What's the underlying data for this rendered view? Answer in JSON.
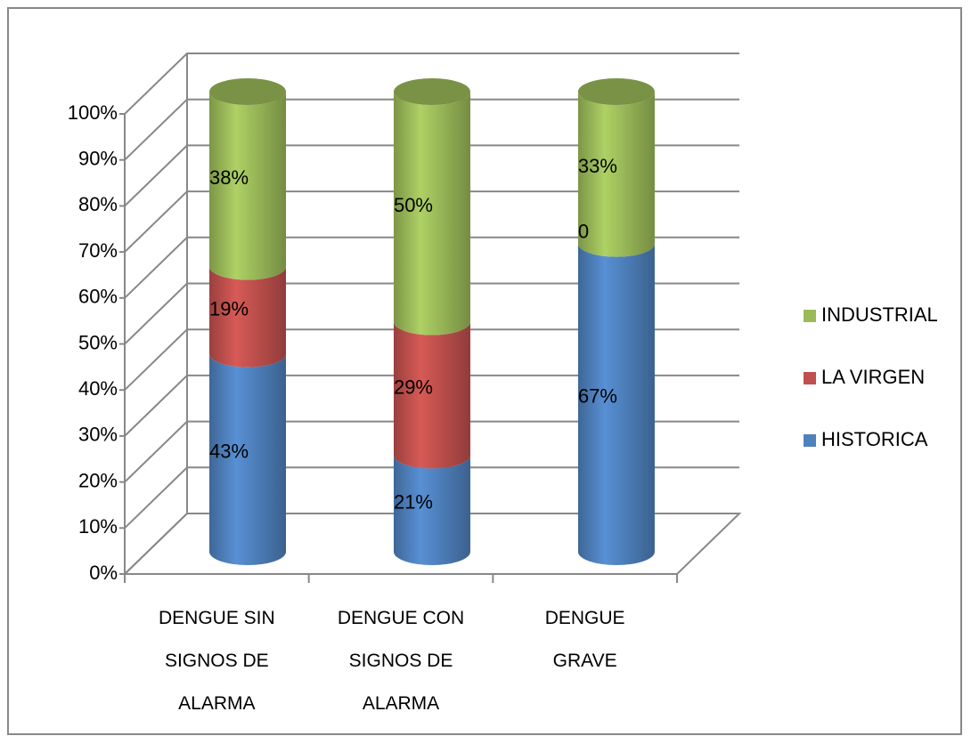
{
  "chart_data": {
    "type": "bar3d_stacked",
    "categories": [
      "DENGUE SIN SIGNOS DE ALARMA",
      "DENGUE CON SIGNOS DE ALARMA",
      "DENGUE GRAVE"
    ],
    "series": [
      {
        "name": "HISTORICA",
        "color": "#4f81bd",
        "values": [
          43,
          21,
          67
        ],
        "value_labels": [
          "43%",
          "21%",
          "67%"
        ]
      },
      {
        "name": "LA VIRGEN",
        "color": "#c0504d",
        "values": [
          19,
          29,
          0
        ],
        "value_labels": [
          "19%",
          "29%",
          "0"
        ]
      },
      {
        "name": "INDUSTRIAL",
        "color": "#9bbb59",
        "values": [
          38,
          50,
          33
        ],
        "value_labels": [
          "38%",
          "50%",
          "33%"
        ]
      }
    ],
    "ylim": [
      0,
      100
    ],
    "yticks": [
      {
        "value": 0,
        "label": "0%"
      },
      {
        "value": 10,
        "label": "10%"
      },
      {
        "value": 20,
        "label": "20%"
      },
      {
        "value": 30,
        "label": "30%"
      },
      {
        "value": 40,
        "label": "40%"
      },
      {
        "value": 50,
        "label": "50%"
      },
      {
        "value": 60,
        "label": "60%"
      },
      {
        "value": 70,
        "label": "70%"
      },
      {
        "value": 80,
        "label": "80%"
      },
      {
        "value": 90,
        "label": "90%"
      },
      {
        "value": 100,
        "label": "100%"
      }
    ],
    "grid": true,
    "legend": "right"
  }
}
